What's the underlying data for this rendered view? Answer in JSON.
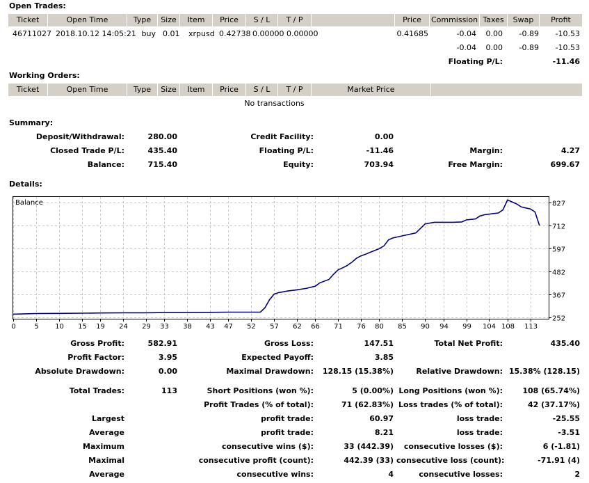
{
  "open_trades": {
    "title": "Open Trades:",
    "headers": [
      "Ticket",
      "Open Time",
      "Type",
      "Size",
      "Item",
      "Price",
      "S / L",
      "T / P",
      "Price",
      "Commission",
      "Taxes",
      "Swap",
      "Profit"
    ],
    "row": {
      "ticket": "46711027",
      "open_time": "2018.10.12 14:05:21",
      "type": "buy",
      "size": "0.01",
      "item": "xrpusd",
      "price": "0.42738",
      "sl": "0.00000",
      "tp": "0.00000",
      "price2": "0.41685",
      "commission": "-0.04",
      "taxes": "0.00",
      "swap": "-0.89",
      "profit": "-10.53"
    },
    "total": {
      "commission": "-0.04",
      "taxes": "0.00",
      "swap": "-0.89",
      "profit": "-10.53"
    },
    "floating_label": "Floating P/L:",
    "floating_value": "-11.46"
  },
  "working_orders": {
    "title": "Working Orders:",
    "headers": [
      "Ticket",
      "Open Time",
      "Type",
      "Size",
      "Item",
      "Price",
      "S / L",
      "T / P",
      "Market Price"
    ],
    "empty": "No transactions"
  },
  "summary": {
    "title": "Summary:",
    "deposit_label": "Deposit/Withdrawal:",
    "deposit": "280.00",
    "credit_label": "Credit Facility:",
    "credit": "0.00",
    "closed_label": "Closed Trade P/L:",
    "closed": "435.40",
    "floating_label": "Floating P/L:",
    "floating": "-11.46",
    "margin_label": "Margin:",
    "margin": "4.27",
    "balance_label": "Balance:",
    "balance": "715.40",
    "equity_label": "Equity:",
    "equity": "703.94",
    "free_margin_label": "Free Margin:",
    "free_margin": "699.67"
  },
  "details": {
    "title": "Details:",
    "gross_profit_label": "Gross Profit:",
    "gross_profit": "582.91",
    "gross_loss_label": "Gross Loss:",
    "gross_loss": "147.51",
    "net_profit_label": "Total Net Profit:",
    "net_profit": "435.40",
    "profit_factor_label": "Profit Factor:",
    "profit_factor": "3.95",
    "expected_payoff_label": "Expected Payoff:",
    "expected_payoff": "3.85",
    "abs_dd_label": "Absolute Drawdown:",
    "abs_dd": "0.00",
    "max_dd_label": "Maximal Drawdown:",
    "max_dd": "128.15 (15.38%)",
    "rel_dd_label": "Relative Drawdown:",
    "rel_dd": "15.38% (128.15)",
    "total_trades_label": "Total Trades:",
    "total_trades": "113",
    "short_label": "Short Positions (won %):",
    "short": "5 (0.00%)",
    "long_label": "Long Positions (won %):",
    "long": "108 (65.74%)",
    "profit_trades_label": "Profit Trades (% of total):",
    "profit_trades": "71 (62.83%)",
    "loss_trades_label": "Loss trades (% of total):",
    "loss_trades": "42 (37.17%)",
    "largest_label": "Largest",
    "largest_profit_label": "profit trade:",
    "largest_profit": "60.97",
    "largest_loss_label": "loss trade:",
    "largest_loss": "-25.55",
    "average_label": "Average",
    "average_profit_label": "profit trade:",
    "average_profit": "8.21",
    "average_loss_label": "loss trade:",
    "average_loss": "-3.51",
    "maximum_label": "Maximum",
    "max_cons_wins_label": "consecutive wins ($):",
    "max_cons_wins": "33 (442.39)",
    "max_cons_losses_label": "consecutive losses ($):",
    "max_cons_losses": "6 (-1.81)",
    "maximal_label": "Maximal",
    "maximal_cons_profit_label": "consecutive profit (count):",
    "maximal_cons_profit": "442.39 (33)",
    "maximal_cons_loss_label": "consecutive loss (count):",
    "maximal_cons_loss": "-71.91 (4)",
    "average2_label": "Average",
    "avg_cons_wins_label": "consecutive wins:",
    "avg_cons_wins": "4",
    "avg_cons_losses_label": "consecutive losses:",
    "avg_cons_losses": "2"
  },
  "chart_data": {
    "type": "line",
    "title": "Balance",
    "x_ticks": [
      0,
      5,
      10,
      15,
      19,
      24,
      29,
      33,
      38,
      43,
      47,
      52,
      57,
      62,
      66,
      71,
      76,
      80,
      85,
      90,
      94,
      99,
      104,
      108,
      113
    ],
    "y_ticks": [
      252,
      367,
      482,
      597,
      712,
      827
    ],
    "xlim": [
      0,
      117
    ],
    "ylim": [
      245,
      855
    ],
    "series": [
      {
        "name": "Balance",
        "color": "#000080",
        "x": [
          0,
          2,
          5,
          10,
          15,
          19,
          24,
          29,
          33,
          35,
          38,
          43,
          47,
          52,
          54,
          55,
          56,
          57,
          58,
          59,
          60,
          62,
          64,
          66,
          67,
          69,
          70,
          71,
          72,
          73,
          74,
          75,
          76,
          77,
          78,
          80,
          81,
          82,
          83,
          84,
          85,
          86,
          88,
          90,
          92,
          94,
          96,
          98,
          99,
          101,
          102,
          103,
          105,
          106,
          107,
          108,
          110,
          111,
          112,
          113,
          114,
          115
        ],
        "y": [
          268,
          269,
          271,
          272,
          273,
          274,
          275,
          275,
          276,
          276,
          276,
          277,
          278,
          278,
          278,
          300,
          340,
          368,
          376,
          380,
          384,
          390,
          397,
          408,
          425,
          442,
          468,
          490,
          500,
          512,
          528,
          548,
          560,
          568,
          578,
          596,
          610,
          640,
          650,
          655,
          660,
          665,
          675,
          720,
          728,
          728,
          728,
          730,
          740,
          745,
          760,
          766,
          772,
          775,
          790,
          840,
          820,
          805,
          800,
          795,
          780,
          712
        ]
      }
    ]
  }
}
